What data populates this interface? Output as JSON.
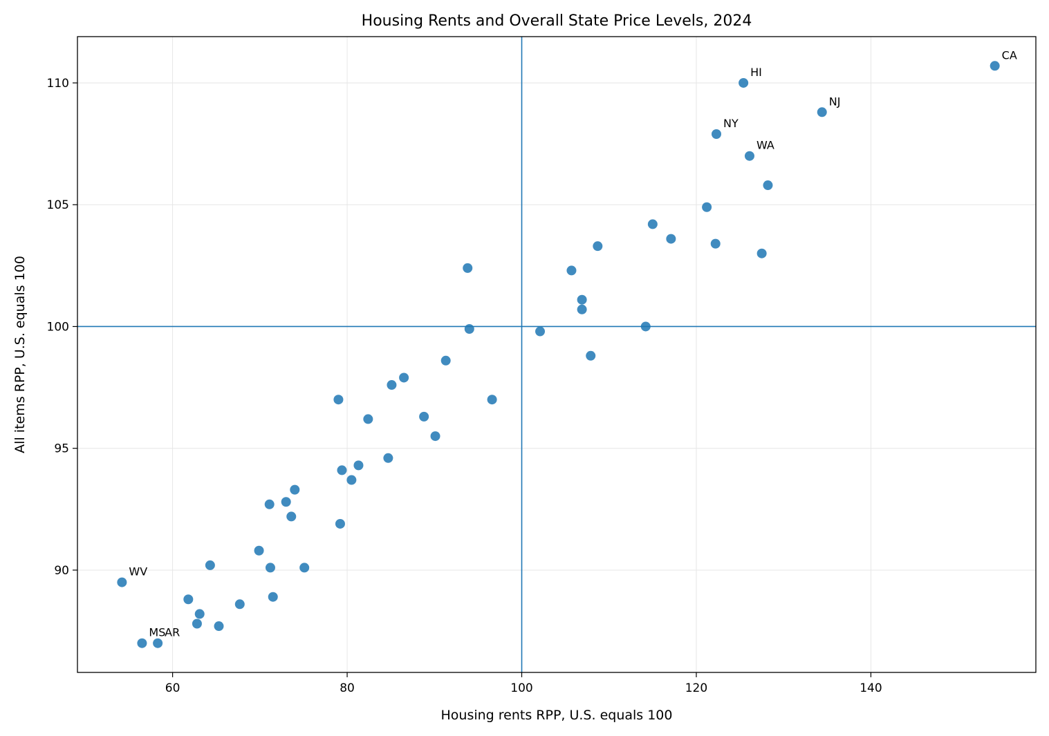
{
  "chart_data": {
    "type": "scatter",
    "title": "Housing Rents and Overall State Price Levels, 2024",
    "xlabel": "Housing rents RPP, U.S. equals 100",
    "ylabel": "All items RPP, U.S. equals 100",
    "xlim": [
      49.1,
      158.9
    ],
    "ylim": [
      85.8,
      111.9
    ],
    "xticks": [
      60,
      80,
      100,
      120,
      140
    ],
    "yticks": [
      90,
      95,
      100,
      105,
      110
    ],
    "grid": true,
    "reference_lines": {
      "x": 100,
      "y": 100
    },
    "colors": {
      "points": "#1f77b4",
      "reference": "#1f77b4",
      "grid": "#e6e6e6"
    },
    "points": [
      {
        "x": 154.2,
        "y": 110.7,
        "label": "CA"
      },
      {
        "x": 125.4,
        "y": 110.0,
        "label": "HI"
      },
      {
        "x": 134.4,
        "y": 108.8,
        "label": "NJ"
      },
      {
        "x": 122.3,
        "y": 107.9,
        "label": "NY"
      },
      {
        "x": 126.1,
        "y": 107.0,
        "label": "WA"
      },
      {
        "x": 128.2,
        "y": 105.8
      },
      {
        "x": 121.2,
        "y": 104.9
      },
      {
        "x": 115.0,
        "y": 104.2
      },
      {
        "x": 117.1,
        "y": 103.6
      },
      {
        "x": 122.2,
        "y": 103.4
      },
      {
        "x": 108.7,
        "y": 103.3
      },
      {
        "x": 127.5,
        "y": 103.0
      },
      {
        "x": 93.8,
        "y": 102.4
      },
      {
        "x": 105.7,
        "y": 102.3
      },
      {
        "x": 106.9,
        "y": 101.1
      },
      {
        "x": 106.9,
        "y": 100.7
      },
      {
        "x": 94.0,
        "y": 99.9
      },
      {
        "x": 114.2,
        "y": 100.0
      },
      {
        "x": 102.1,
        "y": 99.8
      },
      {
        "x": 107.9,
        "y": 98.8
      },
      {
        "x": 91.3,
        "y": 98.6
      },
      {
        "x": 86.5,
        "y": 97.9
      },
      {
        "x": 85.1,
        "y": 97.6
      },
      {
        "x": 79.0,
        "y": 97.0
      },
      {
        "x": 96.6,
        "y": 97.0
      },
      {
        "x": 82.4,
        "y": 96.2
      },
      {
        "x": 88.8,
        "y": 96.3
      },
      {
        "x": 90.1,
        "y": 95.5
      },
      {
        "x": 84.7,
        "y": 94.6
      },
      {
        "x": 81.3,
        "y": 94.3
      },
      {
        "x": 79.4,
        "y": 94.1
      },
      {
        "x": 80.5,
        "y": 93.7
      },
      {
        "x": 74.0,
        "y": 93.3
      },
      {
        "x": 71.1,
        "y": 92.7
      },
      {
        "x": 73.0,
        "y": 92.8
      },
      {
        "x": 73.6,
        "y": 92.2
      },
      {
        "x": 79.2,
        "y": 91.9
      },
      {
        "x": 69.9,
        "y": 90.8
      },
      {
        "x": 64.3,
        "y": 90.2
      },
      {
        "x": 71.2,
        "y": 90.1
      },
      {
        "x": 75.1,
        "y": 90.1
      },
      {
        "x": 54.2,
        "y": 89.5,
        "label": "WV"
      },
      {
        "x": 61.8,
        "y": 88.8
      },
      {
        "x": 71.5,
        "y": 88.9
      },
      {
        "x": 67.7,
        "y": 88.6
      },
      {
        "x": 63.1,
        "y": 88.2
      },
      {
        "x": 62.8,
        "y": 87.8
      },
      {
        "x": 65.3,
        "y": 87.7
      },
      {
        "x": 56.5,
        "y": 87.0,
        "label": "MS"
      },
      {
        "x": 58.3,
        "y": 87.0,
        "label": "AR"
      }
    ]
  }
}
